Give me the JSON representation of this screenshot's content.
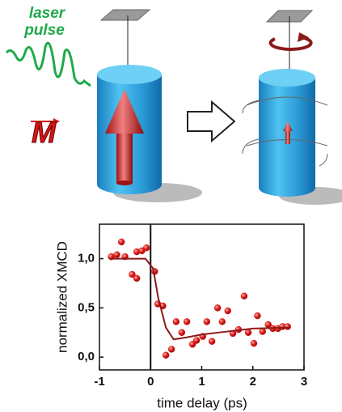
{
  "diagram": {
    "pulse_label": [
      "laser",
      "pulse"
    ],
    "magnetization_label": "M"
  },
  "chart_data": {
    "type": "scatter",
    "x_label": "time delay  (ps)",
    "y_label": "normalized XMCD",
    "xlim": [
      -1,
      3
    ],
    "xticks": [
      -1,
      0,
      1,
      2,
      3
    ],
    "ylim": [
      -0.13,
      1.35
    ],
    "yticks": [
      {
        "value": 0,
        "label": "0,0"
      },
      {
        "value": 0.5,
        "label": "0,5"
      },
      {
        "value": 1,
        "label": "1,0"
      }
    ],
    "series": [
      {
        "kind": "points",
        "color": "#e0201c",
        "x": [
          -0.77,
          -0.66,
          -0.57,
          -0.5,
          -0.36,
          -0.27,
          -0.27,
          -0.17,
          -0.08,
          0.08,
          0.14,
          0.24,
          0.3,
          0.41,
          0.5,
          0.61,
          0.71,
          0.82,
          0.9,
          1.02,
          1.1,
          1.2,
          1.31,
          1.4,
          1.51,
          1.61,
          1.72,
          1.83,
          1.91,
          2.02,
          2.09,
          2.19,
          2.3,
          2.39,
          2.49,
          2.58,
          2.68
        ],
        "values": [
          1.02,
          1.04,
          1.17,
          1.02,
          0.84,
          0.8,
          1.07,
          1.08,
          1.11,
          0.87,
          0.54,
          0.52,
          0.02,
          0.08,
          0.36,
          0.25,
          0.36,
          0.13,
          0.17,
          0.21,
          0.36,
          0.16,
          0.5,
          0.36,
          0.47,
          0.24,
          0.28,
          0.62,
          0.25,
          0.14,
          0.42,
          0.26,
          0.33,
          0.29,
          0.29,
          0.31,
          0.31
        ]
      },
      {
        "kind": "line",
        "color": "#8b1a1a",
        "x": [
          -0.8,
          -0.1,
          0.05,
          0.15,
          0.3,
          0.45,
          0.7,
          1.0,
          1.5,
          2.0,
          2.7
        ],
        "values": [
          1.0,
          1.0,
          0.9,
          0.6,
          0.3,
          0.18,
          0.2,
          0.23,
          0.26,
          0.29,
          0.3
        ]
      }
    ]
  }
}
